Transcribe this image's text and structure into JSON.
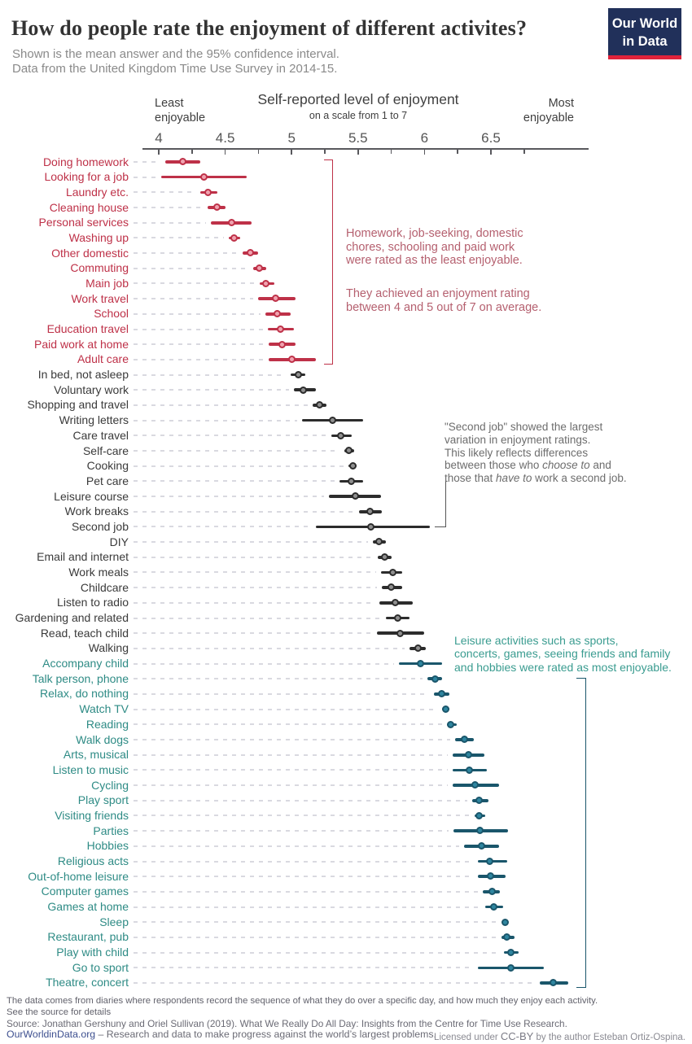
{
  "header": {
    "title": "How do people rate the enjoyment of different activites?",
    "subtitle1": "Shown is the mean answer and the 95% confidence interval.",
    "subtitle2": "Data from the United Kingdom Time Use Survey in 2014-15.",
    "logo_line1": "Our World",
    "logo_line2": "in Data",
    "logo_bg": "#21305a",
    "logo_stripe": "#e0233b"
  },
  "axis": {
    "title": "Self-reported level of enjoyment",
    "subtitle": "on a scale from 1 to 7",
    "left_label": "Least\nenjoyable",
    "right_label": "Most\nenjoyable"
  },
  "annotations": {
    "least": {
      "color": "#b5606f",
      "p1": "Homework, job-seeking, domestic\nchores, schooling and paid work\nwere rated as the least enjoyable.",
      "p2": "They achieved an enjoyment rating\nbetween 4 and 5 out of 7 on average."
    },
    "secondjob": {
      "color": "#6d6d6d",
      "part1": "\"Second job\" showed the largest\n variation in enjoyment ratings.\nThis likely reflects differences\nbetween those who ",
      "italic1": "choose to",
      "part2": " and\nthose that ",
      "italic2": "have to",
      "part3": " work a second job."
    },
    "most": {
      "color": "#3a9c90",
      "text": "Leisure activities such as sports,\nconcerts, games, seeing friends and family\nand hobbies were rated as most enjoyable."
    }
  },
  "footer": {
    "note1": "The data comes from diaries where respondents record the sequence of what they do over a specific day, and how much they enjoy each activity.",
    "note2": "See the source for details",
    "source": "Source: Jonathan Gershuny and Oriel Sullivan (2019). What We Really Do All Day: Insights from the Centre for Time Use Research.",
    "link": "OurWorldinData.org",
    "tagline": " – Research and data to make progress against the world’s largest problems.",
    "license_pre": "Licensed under ",
    "license_cc": "CC-BY",
    "license_post": " by the author Esteban Ortiz-Ospina."
  },
  "chart_data": {
    "type": "scatter",
    "title": "Self-reported level of enjoyment",
    "subtitle": "on a scale from 1 to 7",
    "xlabel": "Self-reported level of enjoyment (scale 1 to 7)",
    "xlim": [
      3.88,
      7.23
    ],
    "xticks": [
      4,
      4.5,
      5,
      5.5,
      6,
      6.5
    ],
    "xtick_labels": [
      "4",
      "4.5",
      "5",
      "5.5",
      "6",
      "6.5"
    ],
    "grid": false,
    "legend": "none",
    "error_bars": "95% confidence interval",
    "groups": {
      "least": {
        "label_color": "#be3148",
        "bar_color": "#be3148",
        "dot_fill": "#f0a3b0",
        "bracket": "#be3148"
      },
      "mid": {
        "label_color": "#3a3a3a",
        "bar_color": "#2c2c2c",
        "dot_fill": "#909090",
        "bracket": "#555555"
      },
      "most": {
        "label_color": "#2e8b85",
        "bar_color": "#1a566b",
        "dot_fill": "#2f86a0",
        "bracket": "#1a566b"
      }
    },
    "series": [
      {
        "label": "Doing homework",
        "group": "least",
        "mean": 4.18,
        "ci_low": 4.05,
        "ci_high": 4.31
      },
      {
        "label": "Looking for a job",
        "group": "least",
        "mean": 4.34,
        "ci_low": 4.02,
        "ci_high": 4.66
      },
      {
        "label": "Laundry etc.",
        "group": "least",
        "mean": 4.37,
        "ci_low": 4.31,
        "ci_high": 4.44
      },
      {
        "label": "Cleaning house",
        "group": "least",
        "mean": 4.44,
        "ci_low": 4.37,
        "ci_high": 4.5
      },
      {
        "label": "Personal services",
        "group": "least",
        "mean": 4.55,
        "ci_low": 4.39,
        "ci_high": 4.7
      },
      {
        "label": "Washing up",
        "group": "least",
        "mean": 4.57,
        "ci_low": 4.53,
        "ci_high": 4.61
      },
      {
        "label": "Other domestic",
        "group": "least",
        "mean": 4.69,
        "ci_low": 4.63,
        "ci_high": 4.75
      },
      {
        "label": "Commuting",
        "group": "least",
        "mean": 4.76,
        "ci_low": 4.71,
        "ci_high": 4.81
      },
      {
        "label": "Main job",
        "group": "least",
        "mean": 4.81,
        "ci_low": 4.76,
        "ci_high": 4.87
      },
      {
        "label": "Work travel",
        "group": "least",
        "mean": 4.88,
        "ci_low": 4.75,
        "ci_high": 5.03
      },
      {
        "label": "School",
        "group": "least",
        "mean": 4.89,
        "ci_low": 4.8,
        "ci_high": 4.99
      },
      {
        "label": "Education travel",
        "group": "least",
        "mean": 4.92,
        "ci_low": 4.82,
        "ci_high": 5.02
      },
      {
        "label": "Paid work at home",
        "group": "least",
        "mean": 4.93,
        "ci_low": 4.83,
        "ci_high": 5.03
      },
      {
        "label": "Adult care",
        "group": "least",
        "mean": 5.0,
        "ci_low": 4.83,
        "ci_high": 5.18
      },
      {
        "label": "In bed, not asleep",
        "group": "mid",
        "mean": 5.05,
        "ci_low": 4.99,
        "ci_high": 5.1
      },
      {
        "label": "Voluntary work",
        "group": "mid",
        "mean": 5.09,
        "ci_low": 5.02,
        "ci_high": 5.18
      },
      {
        "label": "Shopping and travel",
        "group": "mid",
        "mean": 5.21,
        "ci_low": 5.16,
        "ci_high": 5.26
      },
      {
        "label": "Writing letters",
        "group": "mid",
        "mean": 5.31,
        "ci_low": 5.08,
        "ci_high": 5.54
      },
      {
        "label": "Care travel",
        "group": "mid",
        "mean": 5.37,
        "ci_low": 5.3,
        "ci_high": 5.45
      },
      {
        "label": "Self-care",
        "group": "mid",
        "mean": 5.43,
        "ci_low": 5.4,
        "ci_high": 5.47
      },
      {
        "label": "Cooking",
        "group": "mid",
        "mean": 5.46,
        "ci_low": 5.43,
        "ci_high": 5.49
      },
      {
        "label": "Pet care",
        "group": "mid",
        "mean": 5.45,
        "ci_low": 5.36,
        "ci_high": 5.54
      },
      {
        "label": "Leisure course",
        "group": "mid",
        "mean": 5.48,
        "ci_low": 5.28,
        "ci_high": 5.67
      },
      {
        "label": "Work breaks",
        "group": "mid",
        "mean": 5.59,
        "ci_low": 5.51,
        "ci_high": 5.68
      },
      {
        "label": "Second job",
        "group": "mid",
        "mean": 5.6,
        "ci_low": 5.18,
        "ci_high": 6.04
      },
      {
        "label": "DIY",
        "group": "mid",
        "mean": 5.66,
        "ci_low": 5.61,
        "ci_high": 5.71
      },
      {
        "label": "Email and internet",
        "group": "mid",
        "mean": 5.7,
        "ci_low": 5.65,
        "ci_high": 5.75
      },
      {
        "label": "Work meals",
        "group": "mid",
        "mean": 5.76,
        "ci_low": 5.67,
        "ci_high": 5.83
      },
      {
        "label": "Childcare",
        "group": "mid",
        "mean": 5.75,
        "ci_low": 5.68,
        "ci_high": 5.83
      },
      {
        "label": "Listen to radio",
        "group": "mid",
        "mean": 5.78,
        "ci_low": 5.66,
        "ci_high": 5.91
      },
      {
        "label": "Gardening and related",
        "group": "mid",
        "mean": 5.8,
        "ci_low": 5.71,
        "ci_high": 5.89
      },
      {
        "label": "Read, teach child",
        "group": "mid",
        "mean": 5.82,
        "ci_low": 5.64,
        "ci_high": 6.0
      },
      {
        "label": "Walking",
        "group": "mid",
        "mean": 5.95,
        "ci_low": 5.89,
        "ci_high": 6.01
      },
      {
        "label": "Accompany child",
        "group": "most",
        "mean": 5.97,
        "ci_low": 5.81,
        "ci_high": 6.13
      },
      {
        "label": "Talk person, phone",
        "group": "most",
        "mean": 6.08,
        "ci_low": 6.02,
        "ci_high": 6.13
      },
      {
        "label": "Relax, do nothing",
        "group": "most",
        "mean": 6.13,
        "ci_low": 6.07,
        "ci_high": 6.19
      },
      {
        "label": "Watch TV",
        "group": "most",
        "mean": 6.16,
        "ci_low": 6.13,
        "ci_high": 6.19
      },
      {
        "label": "Reading",
        "group": "most",
        "mean": 6.2,
        "ci_low": 6.17,
        "ci_high": 6.24
      },
      {
        "label": "Walk dogs",
        "group": "most",
        "mean": 6.3,
        "ci_low": 6.23,
        "ci_high": 6.37
      },
      {
        "label": "Arts, musical",
        "group": "most",
        "mean": 6.33,
        "ci_low": 6.21,
        "ci_high": 6.45
      },
      {
        "label": "Listen to music",
        "group": "most",
        "mean": 6.34,
        "ci_low": 6.21,
        "ci_high": 6.47
      },
      {
        "label": "Cycling",
        "group": "most",
        "mean": 6.38,
        "ci_low": 6.21,
        "ci_high": 6.56
      },
      {
        "label": "Play sport",
        "group": "most",
        "mean": 6.41,
        "ci_low": 6.36,
        "ci_high": 6.48
      },
      {
        "label": "Visiting friends",
        "group": "most",
        "mean": 6.41,
        "ci_low": 6.38,
        "ci_high": 6.46
      },
      {
        "label": "Parties",
        "group": "most",
        "mean": 6.42,
        "ci_low": 6.22,
        "ci_high": 6.63
      },
      {
        "label": "Hobbies",
        "group": "most",
        "mean": 6.43,
        "ci_low": 6.3,
        "ci_high": 6.56
      },
      {
        "label": "Religious acts",
        "group": "most",
        "mean": 6.49,
        "ci_low": 6.4,
        "ci_high": 6.62
      },
      {
        "label": "Out-of-home leisure",
        "group": "most",
        "mean": 6.5,
        "ci_low": 6.4,
        "ci_high": 6.61
      },
      {
        "label": "Computer games",
        "group": "most",
        "mean": 6.51,
        "ci_low": 6.44,
        "ci_high": 6.57
      },
      {
        "label": "Games at home",
        "group": "most",
        "mean": 6.52,
        "ci_low": 6.46,
        "ci_high": 6.59
      },
      {
        "label": "Sleep",
        "group": "most",
        "mean": 6.61,
        "ci_low": 6.59,
        "ci_high": 6.63
      },
      {
        "label": "Restaurant, pub",
        "group": "most",
        "mean": 6.62,
        "ci_low": 6.58,
        "ci_high": 6.68
      },
      {
        "label": "Play with child",
        "group": "most",
        "mean": 6.65,
        "ci_low": 6.6,
        "ci_high": 6.71
      },
      {
        "label": "Go to sport",
        "group": "most",
        "mean": 6.65,
        "ci_low": 6.4,
        "ci_high": 6.9
      },
      {
        "label": "Theatre, concert",
        "group": "most",
        "mean": 6.97,
        "ci_low": 6.87,
        "ci_high": 7.08
      }
    ]
  }
}
